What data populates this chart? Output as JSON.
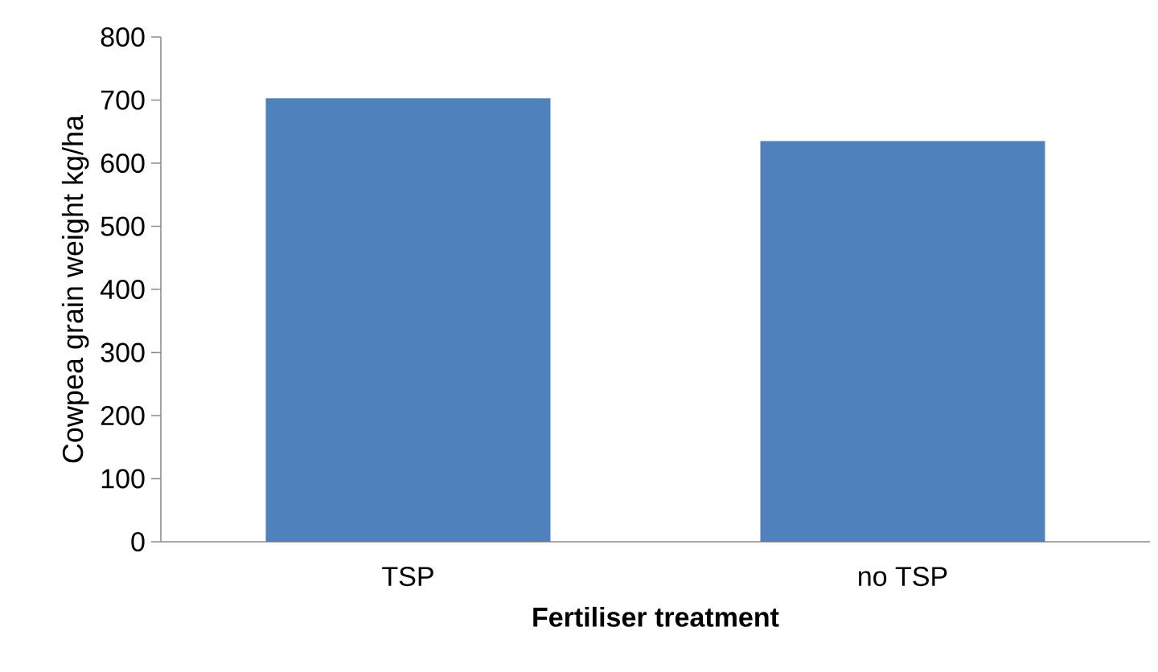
{
  "chart_data": {
    "type": "bar",
    "xlabel": "Fertiliser treatment",
    "ylabel": "Cowpea grain weight kg/ha",
    "categories": [
      "TSP",
      "no TSP"
    ],
    "values": [
      703,
      635
    ],
    "color": "#4f81bd",
    "ylim": [
      0,
      800
    ],
    "yticks": [
      0,
      100,
      200,
      300,
      400,
      500,
      600,
      700,
      800
    ]
  }
}
